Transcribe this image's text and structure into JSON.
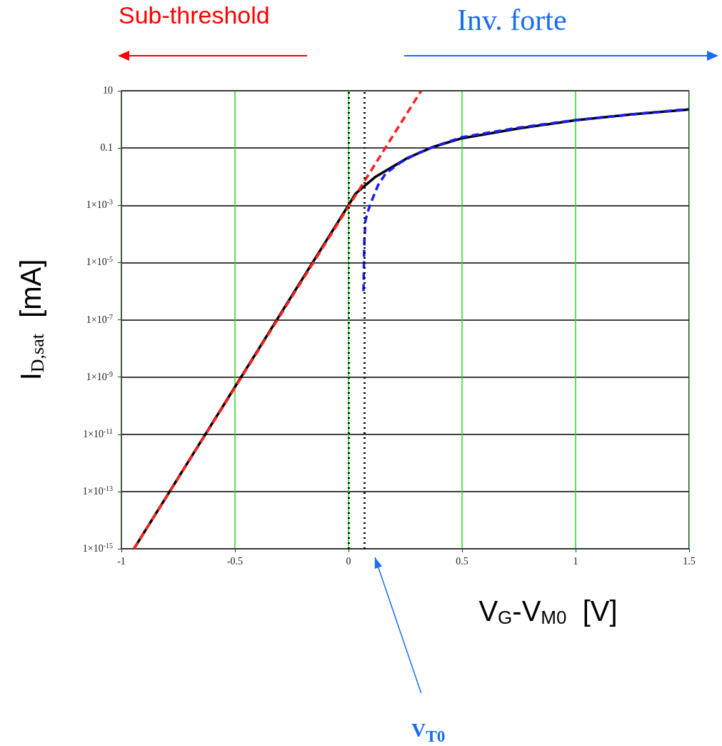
{
  "chart_data": {
    "type": "line",
    "xlabel": "V$_{G}$-V$_{M0}$  [V]",
    "ylabel": "I$_{D,sat}$  [mA]",
    "log": "y",
    "grid": true,
    "marker": "none",
    "xlim": [
      -1,
      1.5
    ],
    "xticks": [
      -1,
      -0.5,
      0,
      0.5,
      1,
      1.5
    ],
    "ylim": [
      1e-15,
      10
    ],
    "yticks": [
      {
        "value": 1e-15,
        "label": "1×10$^{-15}$"
      },
      {
        "value": 1e-13,
        "label": "1×10$^{-13}$"
      },
      {
        "value": 1e-11,
        "label": "1×10$^{-11}$"
      },
      {
        "value": 1e-09,
        "label": "1×10$^{-9}$"
      },
      {
        "value": 1e-07,
        "label": "1×10$^{-7}$"
      },
      {
        "value": 1e-05,
        "label": "1×10$^{-5}$"
      },
      {
        "value": 0.001,
        "label": "1×10$^{-3}$"
      },
      0.1,
      10
    ],
    "series": [
      {
        "color": "#000000",
        "line_style": "solid",
        "x": [
          -0.945,
          -0.5,
          -0.25,
          0,
          0.03,
          0.07,
          0.12,
          0.185,
          0.26,
          0.374,
          0.5,
          0.74,
          1.0,
          1.25,
          1.5
        ],
        "values": [
          1e-15,
          4.5e-10,
          6.8e-07,
          0.001,
          0.0025,
          0.0047,
          0.01,
          0.02,
          0.045,
          0.11,
          0.22,
          0.47,
          0.93,
          1.5,
          2.2
        ]
      },
      {
        "color": "#ff2020",
        "line_style": "dashed",
        "x": [
          -0.945,
          0.32
        ],
        "values": [
          1e-15,
          10
        ]
      },
      {
        "color": "#1a1aff",
        "line_style": "dashed",
        "x": [
          0.066,
          0.068,
          0.07,
          0.075,
          0.085,
          0.1,
          0.13,
          0.164,
          0.226,
          0.3,
          0.374,
          0.5,
          0.74,
          1.0,
          1.25,
          1.5
        ],
        "values": [
          1e-06,
          1e-05,
          6e-05,
          0.0003,
          0.0006,
          0.0013,
          0.005,
          0.013,
          0.03,
          0.063,
          0.11,
          0.24,
          0.5,
          0.95,
          1.5,
          2.3
        ]
      }
    ],
    "ref_lines": [
      {
        "axis": "x",
        "value": 0,
        "color": "#000000",
        "line_style": "dotted"
      },
      {
        "axis": "x",
        "value": 0.07,
        "color": "#000000",
        "line_style": "dotted"
      }
    ],
    "annotations": [
      "Sub-threshold",
      "Inv. forte",
      "V$_{T0}$"
    ]
  }
}
